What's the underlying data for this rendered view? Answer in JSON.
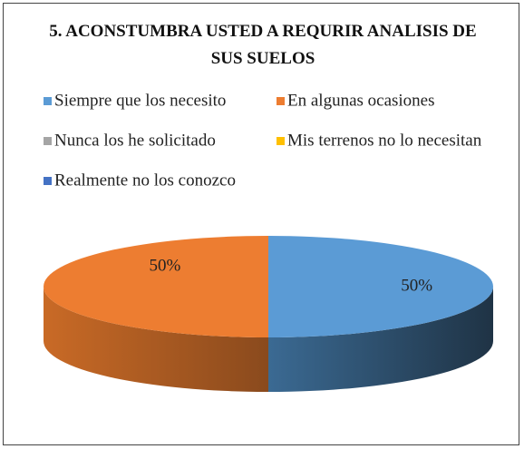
{
  "chart_data": {
    "type": "pie",
    "title": "5. ACONSTUMBRA USTED A REQURIR ANALISIS DE SUS SUELOS",
    "categories": [
      "Siempre que los necesito",
      "En algunas ocasiones",
      "Nunca los he solicitado",
      "Mis terrenos no lo necesitan",
      "Realmente no los conozco"
    ],
    "values": [
      50,
      50,
      0,
      0,
      0
    ],
    "value_labels": [
      "50%",
      "50%",
      null,
      null,
      null
    ],
    "colors": [
      "#5b9bd5",
      "#ed7d31",
      "#a5a5a5",
      "#ffc000",
      "#4472c4"
    ],
    "legend": "top"
  }
}
